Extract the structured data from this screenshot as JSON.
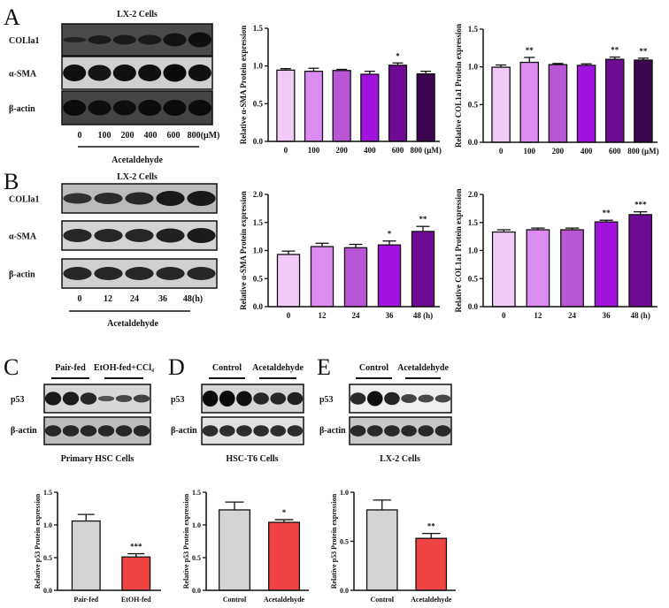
{
  "panels": {
    "A": {
      "letter": "A",
      "blot_title": "LX-2 Cells",
      "rows": [
        "COLla1",
        "α-SMA",
        "β-actin"
      ],
      "lanes": [
        "0",
        "100",
        "200",
        "400",
        "600",
        "800(μM)"
      ],
      "treatment": "Acetaldehyde"
    },
    "B": {
      "letter": "B",
      "blot_title": "LX-2 Cells",
      "rows": [
        "COLla1",
        "α-SMA",
        "β-actin"
      ],
      "lanes": [
        "0",
        "12",
        "24",
        "36",
        "48(h)"
      ],
      "treatment": "Acetaldehyde"
    },
    "C": {
      "letter": "C",
      "groups": [
        "Pair-fed",
        "EtOH-fed+CCl₄"
      ],
      "rows": [
        "p53",
        "β-actin"
      ],
      "caption": "Primary HSC Cells"
    },
    "D": {
      "letter": "D",
      "groups": [
        "Control",
        "Acetaldehyde"
      ],
      "rows": [
        "p53",
        "β-actin"
      ],
      "caption": "HSC-T6 Cells"
    },
    "E": {
      "letter": "E",
      "groups": [
        "Control",
        "Acetaldehyde"
      ],
      "rows": [
        "p53",
        "β-actin"
      ],
      "caption": "LX-2 Cells"
    }
  },
  "chart_data": [
    {
      "type": "bar",
      "panel": "A",
      "ylabel": "Relative α-SMA Protein expression",
      "categories": [
        "0",
        "100",
        "200",
        "400",
        "600",
        "800 (μM)"
      ],
      "values": [
        0.945,
        0.93,
        0.94,
        0.89,
        1.01,
        0.895
      ],
      "errors": [
        0.02,
        0.04,
        0.015,
        0.04,
        0.03,
        0.035
      ],
      "significance": [
        "",
        "",
        "",
        "",
        "*",
        ""
      ],
      "ylim": [
        0,
        1.5
      ],
      "yticks": [
        "0.0",
        "0.5",
        "1.0",
        "1.5"
      ],
      "colors": [
        "#f0cbf6",
        "#dc8cf0",
        "#b856d6",
        "#a213e0",
        "#6f0a94",
        "#3d054f"
      ]
    },
    {
      "type": "bar",
      "panel": "A",
      "ylabel": "Relative COL1a1 Protein expression",
      "categories": [
        "0",
        "100",
        "200",
        "400",
        "600",
        "800 (μM)"
      ],
      "values": [
        0.995,
        1.06,
        1.03,
        1.02,
        1.1,
        1.09
      ],
      "errors": [
        0.03,
        0.065,
        0.015,
        0.02,
        0.03,
        0.025
      ],
      "significance": [
        "",
        "**",
        "",
        "",
        "**",
        "**"
      ],
      "ylim": [
        0,
        1.5
      ],
      "yticks": [
        "0.0",
        "0.5",
        "1.0",
        "1.5"
      ],
      "colors": [
        "#f0cbf6",
        "#dc8cf0",
        "#b856d6",
        "#a213e0",
        "#6f0a94",
        "#3d054f"
      ]
    },
    {
      "type": "bar",
      "panel": "B",
      "ylabel": "Relative α-SMA Protein expression",
      "categories": [
        "0",
        "12",
        "24",
        "36",
        "48 (h)"
      ],
      "values": [
        0.93,
        1.07,
        1.05,
        1.1,
        1.34
      ],
      "errors": [
        0.06,
        0.06,
        0.06,
        0.07,
        0.09
      ],
      "significance": [
        "",
        "",
        "",
        "*",
        "**"
      ],
      "ylim": [
        0,
        2.0
      ],
      "yticks": [
        "0.0",
        "0.5",
        "1.0",
        "1.5",
        "2.0"
      ],
      "colors": [
        "#f0cbf6",
        "#dc8cf0",
        "#b856d6",
        "#a213e0",
        "#6f0a94"
      ]
    },
    {
      "type": "bar",
      "panel": "B",
      "ylabel": "Relative COL1a1 Protein expression",
      "categories": [
        "0",
        "12",
        "24",
        "36",
        "48 (h)"
      ],
      "values": [
        1.33,
        1.37,
        1.37,
        1.51,
        1.64
      ],
      "errors": [
        0.04,
        0.03,
        0.03,
        0.03,
        0.05
      ],
      "significance": [
        "",
        "",
        "",
        "**",
        "***"
      ],
      "ylim": [
        0,
        2.0
      ],
      "yticks": [
        "0.0",
        "0.5",
        "1.0",
        "1.5",
        "2.0"
      ],
      "colors": [
        "#f0cbf6",
        "#dc8cf0",
        "#b856d6",
        "#a213e0",
        "#6f0a94"
      ]
    },
    {
      "type": "bar",
      "panel": "C",
      "ylabel": "Relative p53 Protein expression",
      "categories": [
        "Pair-fed",
        "EtOH-fed"
      ],
      "values": [
        1.06,
        0.51
      ],
      "errors": [
        0.1,
        0.05
      ],
      "significance": [
        "",
        "***"
      ],
      "ylim": [
        0,
        1.5
      ],
      "yticks": [
        "0.0",
        "0.5",
        "1.0",
        "1.5"
      ],
      "colors": [
        "#d4d4d4",
        "#f04444"
      ]
    },
    {
      "type": "bar",
      "panel": "D",
      "ylabel": "Relative p53 Protein expression",
      "categories": [
        "Control",
        "Acetaldehyde"
      ],
      "values": [
        1.23,
        1.04
      ],
      "errors": [
        0.12,
        0.04
      ],
      "significance": [
        "",
        "*"
      ],
      "ylim": [
        0,
        1.5
      ],
      "yticks": [
        "0.0",
        "0.5",
        "1.0",
        "1.5"
      ],
      "colors": [
        "#d4d4d4",
        "#f04444"
      ]
    },
    {
      "type": "bar",
      "panel": "E",
      "ylabel": "Relative p53 Protein expression",
      "categories": [
        "Control",
        "Acetaldehyde"
      ],
      "values": [
        0.82,
        0.53
      ],
      "errors": [
        0.1,
        0.05
      ],
      "significance": [
        "",
        "**"
      ],
      "ylim": [
        0,
        1.0
      ],
      "yticks": [
        "0.0",
        "0.5",
        "1.0"
      ],
      "colors": [
        "#d4d4d4",
        "#f04444"
      ]
    }
  ]
}
